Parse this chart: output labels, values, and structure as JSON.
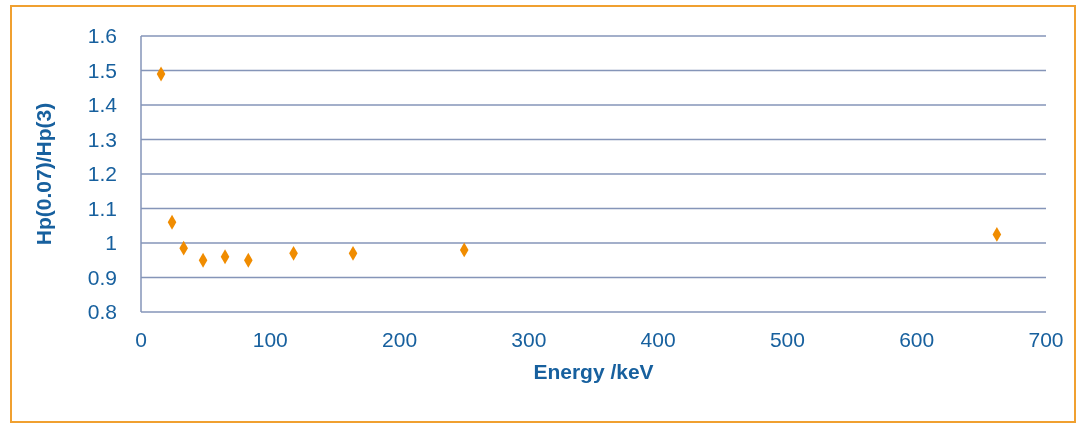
{
  "chart_data": {
    "type": "scatter",
    "xlabel": "Energy /keV",
    "ylabel": "Hp(0.07)/Hp(3)",
    "x": [
      15.5,
      24,
      33,
      48,
      65,
      83,
      118,
      164,
      250,
      662
    ],
    "series": [
      {
        "color": "#f08c00",
        "values": [
          1.49,
          1.06,
          0.985,
          0.95,
          0.96,
          0.95,
          0.97,
          0.97,
          0.98,
          1.025
        ]
      }
    ],
    "xlim": [
      0,
      700
    ],
    "xticks": [
      0,
      100,
      200,
      300,
      400,
      500,
      600,
      700
    ],
    "ylim": [
      0.8,
      1.6
    ],
    "yticks": [
      0.8,
      0.9,
      1,
      1.1,
      1.2,
      1.3,
      1.4,
      1.5,
      1.6
    ],
    "grid": "y",
    "marker": "diamond",
    "legend": false
  }
}
